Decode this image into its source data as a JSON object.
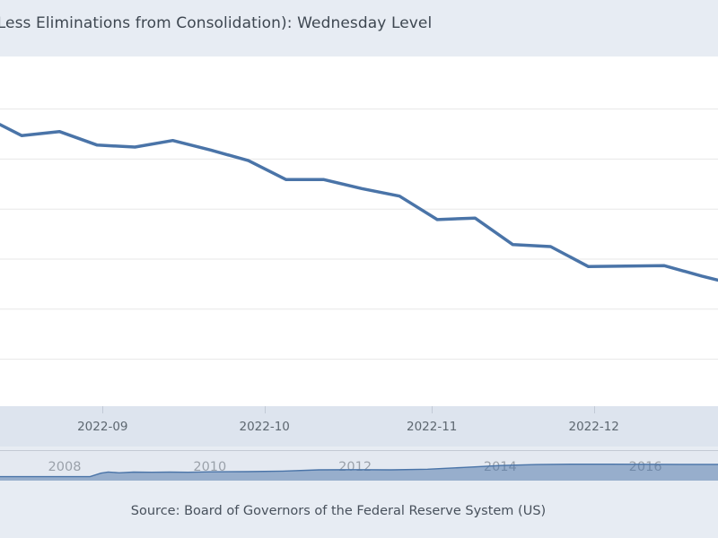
{
  "header": {
    "title": "(Less Eliminations from Consolidation): Wednesday Level",
    "title_clipped_note": "title is cropped at the left edge of the frame"
  },
  "source": {
    "text": "Source: Board of Governors of the Federal Reserve System (US)"
  },
  "colors": {
    "series_line": "#4a74a8",
    "navigator_fill": "rgba(74,116,168,0.5)",
    "navigator_line": "#4a74a8",
    "gridline": "#e7e7e7",
    "tick": "#c2cad6",
    "plot_background": "#ffffff",
    "band_background": "#dde4ee",
    "page_background": "#e7ecf3"
  },
  "chart_data": {
    "main": {
      "type": "line",
      "title": "(Less Eliminations from Consolidation): Wednesday Level",
      "series_name": "Total Assets (Less Eliminations from Consolidation): Wednesday Level",
      "units_note": "y-axis tick labels are cropped out of the frame; values below are estimated, billions of USD",
      "grid": "horizontal gridlines only",
      "legend": "none",
      "xlim": [
        "2022-08-13",
        "2022-12-24"
      ],
      "ylim_est_billions": [
        8306,
        9005
      ],
      "gridline_values": [
        8900,
        8800,
        8700,
        8600,
        8500,
        8400
      ],
      "x_ticks": [
        {
          "label": "2022-09",
          "date": "2022-09-01"
        },
        {
          "label": "2022-10",
          "date": "2022-10-01"
        },
        {
          "label": "2022-11",
          "date": "2022-11-01"
        },
        {
          "label": "2022-12",
          "date": "2022-12-01"
        }
      ],
      "points": [
        {
          "date": "2022-08-13",
          "value": 8869
        },
        {
          "date": "2022-08-17",
          "value": 8847
        },
        {
          "date": "2022-08-24",
          "value": 8855
        },
        {
          "date": "2022-08-31",
          "value": 8828
        },
        {
          "date": "2022-09-07",
          "value": 8824
        },
        {
          "date": "2022-09-14",
          "value": 8837
        },
        {
          "date": "2022-09-21",
          "value": 8818
        },
        {
          "date": "2022-09-28",
          "value": 8797
        },
        {
          "date": "2022-10-05",
          "value": 8759
        },
        {
          "date": "2022-10-12",
          "value": 8759
        },
        {
          "date": "2022-10-19",
          "value": 8741
        },
        {
          "date": "2022-10-26",
          "value": 8726
        },
        {
          "date": "2022-11-02",
          "value": 8679
        },
        {
          "date": "2022-11-09",
          "value": 8682
        },
        {
          "date": "2022-11-16",
          "value": 8629
        },
        {
          "date": "2022-11-23",
          "value": 8625
        },
        {
          "date": "2022-11-30",
          "value": 8585
        },
        {
          "date": "2022-12-07",
          "value": 8586
        },
        {
          "date": "2022-12-14",
          "value": 8587
        },
        {
          "date": "2022-12-21",
          "value": 8566
        },
        {
          "date": "2022-12-24",
          "value": 8558
        }
      ]
    },
    "navigator": {
      "type": "area",
      "role": "range-selector mini chart (full history preview, right side cropped)",
      "x_tick_labels": [
        "2008",
        "2010",
        "2012",
        "2014",
        "2016"
      ],
      "x_tick_years": [
        2008,
        2010,
        2012,
        2014,
        2016
      ],
      "xlim_years": [
        2007.11,
        2017.0
      ],
      "ylim_est_trillions": [
        -0.25,
        8.3
      ],
      "points": [
        {
          "year": 2007.11,
          "value": 0.88
        },
        {
          "year": 2008.0,
          "value": 0.89
        },
        {
          "year": 2008.35,
          "value": 0.9
        },
        {
          "year": 2008.5,
          "value": 1.9
        },
        {
          "year": 2008.6,
          "value": 2.25
        },
        {
          "year": 2008.75,
          "value": 2.0
        },
        {
          "year": 2008.95,
          "value": 2.2
        },
        {
          "year": 2009.2,
          "value": 2.15
        },
        {
          "year": 2009.45,
          "value": 2.2
        },
        {
          "year": 2009.7,
          "value": 2.15
        },
        {
          "year": 2010.0,
          "value": 2.3
        },
        {
          "year": 2010.5,
          "value": 2.33
        },
        {
          "year": 2011.0,
          "value": 2.5
        },
        {
          "year": 2011.5,
          "value": 2.85
        },
        {
          "year": 2012.0,
          "value": 2.9
        },
        {
          "year": 2012.5,
          "value": 2.87
        },
        {
          "year": 2013.0,
          "value": 3.05
        },
        {
          "year": 2013.5,
          "value": 3.55
        },
        {
          "year": 2014.0,
          "value": 4.1
        },
        {
          "year": 2014.5,
          "value": 4.4
        },
        {
          "year": 2015.0,
          "value": 4.5
        },
        {
          "year": 2015.5,
          "value": 4.48
        },
        {
          "year": 2016.0,
          "value": 4.47
        },
        {
          "year": 2016.5,
          "value": 4.45
        },
        {
          "year": 2017.0,
          "value": 4.44
        }
      ]
    }
  }
}
